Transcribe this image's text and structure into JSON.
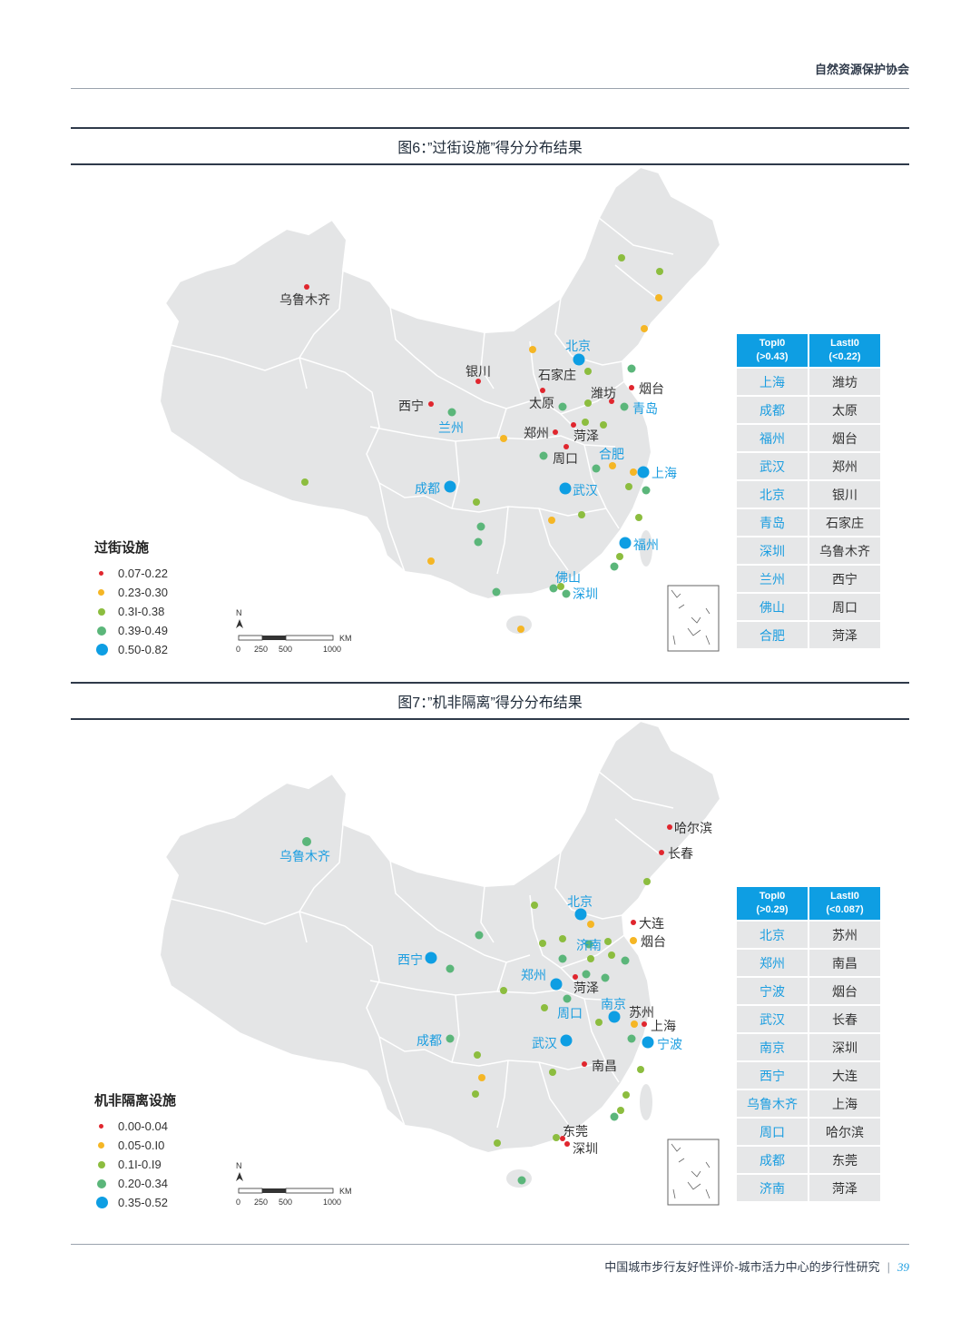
{
  "header": {
    "org": "自然资源保护协会"
  },
  "footer": {
    "text": "中国城市步行友好性评价-城市活力中心的步行性研究",
    "separator": "|",
    "page": "39"
  },
  "scale": {
    "north": "N",
    "unit": "KM",
    "ticks": [
      "0",
      "250",
      "500",
      "1000"
    ]
  },
  "colors": {
    "c1": "#e0262e",
    "c2": "#f5b625",
    "c3": "#8cbd3f",
    "c4": "#5bb67a",
    "c5": "#0e9ee3"
  },
  "fig6": {
    "title": "图6：”过街设施”得分分布结果",
    "legend_title": "过街设施",
    "legend": [
      "0.07-0.22",
      "0.23-0.30",
      "0.3I-0.38",
      "0.39-0.49",
      "0.50-0.82"
    ],
    "table_head_top": [
      "TopI0",
      "(>0.43)"
    ],
    "table_head_last": [
      "LastI0",
      "(<0.22)"
    ],
    "top": [
      "上海",
      "成都",
      "福州",
      "武汉",
      "北京",
      "青岛",
      "深圳",
      "兰州",
      "佛山",
      "合肥"
    ],
    "last": [
      "潍坊",
      "太原",
      "烟台",
      "郑州",
      "银川",
      "石家庄",
      "乌鲁木齐",
      "西宁",
      "周口",
      "菏泽"
    ],
    "labels": {
      "wulumuqi": "乌鲁木齐",
      "beijing": "北京",
      "yinchuan": "银川",
      "shijiazhuang": "石家庄",
      "weifang": "潍坊",
      "yantai": "烟台",
      "xining": "西宁",
      "taiyuan": "太原",
      "qingdao": "青岛",
      "lanzhou": "兰州",
      "zhengzhou": "郑州",
      "heze": "菏泽",
      "hefei": "合肥",
      "zhoukou": "周口",
      "shanghai": "上海",
      "chengdu": "成都",
      "wuhan": "武汉",
      "fuzhou": "福州",
      "foshan": "佛山",
      "shenzhen": "深圳"
    }
  },
  "fig7": {
    "title": "图7：”机非隔离”得分分布结果",
    "legend_title": "机非隔离设施",
    "legend": [
      "0.00-0.04",
      "0.05-0.I0",
      "0.1I-0.I9",
      "0.20-0.34",
      "0.35-0.52"
    ],
    "table_head_top": [
      "TopI0",
      "(>0.29)"
    ],
    "table_head_last": [
      "LastI0",
      "(<0.087)"
    ],
    "top": [
      "北京",
      "郑州",
      "宁波",
      "武汉",
      "南京",
      "西宁",
      "乌鲁木齐",
      "周口",
      "成都",
      "济南"
    ],
    "last": [
      "苏州",
      "南昌",
      "烟台",
      "长春",
      "深圳",
      "大连",
      "上海",
      "哈尔滨",
      "东莞",
      "菏泽"
    ],
    "labels": {
      "haerbin": "哈尔滨",
      "changchun": "长春",
      "wulumuqi": "乌鲁木齐",
      "beijing": "北京",
      "dalian": "大连",
      "yantai": "烟台",
      "jinan": "济南",
      "xining": "西宁",
      "zhengzhou": "郑州",
      "heze": "菏泽",
      "nanjing": "南京",
      "suzhou": "苏州",
      "zhoukou": "周口",
      "shanghai": "上海",
      "chengdu": "成都",
      "wuhan": "武汉",
      "ningbo": "宁波",
      "nanchang": "南昌",
      "dongguan": "东莞",
      "shenzhen": "深圳"
    }
  }
}
